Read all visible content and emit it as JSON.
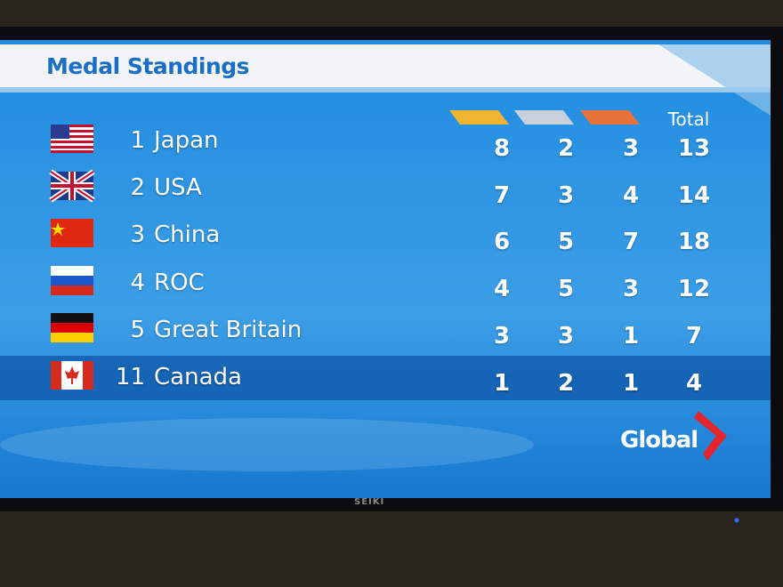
{
  "header": {
    "title": "Medal Standings"
  },
  "table": {
    "total_label": "Total",
    "rows": [
      {
        "rank": "1",
        "country": "Japan",
        "gold": 8,
        "silver": 2,
        "bronze": 3,
        "total": 13
      },
      {
        "rank": "2",
        "country": "USA",
        "gold": 7,
        "silver": 3,
        "bronze": 4,
        "total": 14
      },
      {
        "rank": "3",
        "country": "China",
        "gold": 6,
        "silver": 5,
        "bronze": 7,
        "total": 18
      },
      {
        "rank": "4",
        "country": "ROC",
        "gold": 4,
        "silver": 5,
        "bronze": 3,
        "total": 12
      },
      {
        "rank": "5",
        "country": "Great Britain",
        "gold": 3,
        "silver": 3,
        "bronze": 1,
        "total": 7
      },
      {
        "rank": "11",
        "country": "Canada",
        "gold": 1,
        "silver": 2,
        "bronze": 1,
        "total": 4
      }
    ]
  },
  "logo": "Global",
  "tv_brand": "SEIKI"
}
